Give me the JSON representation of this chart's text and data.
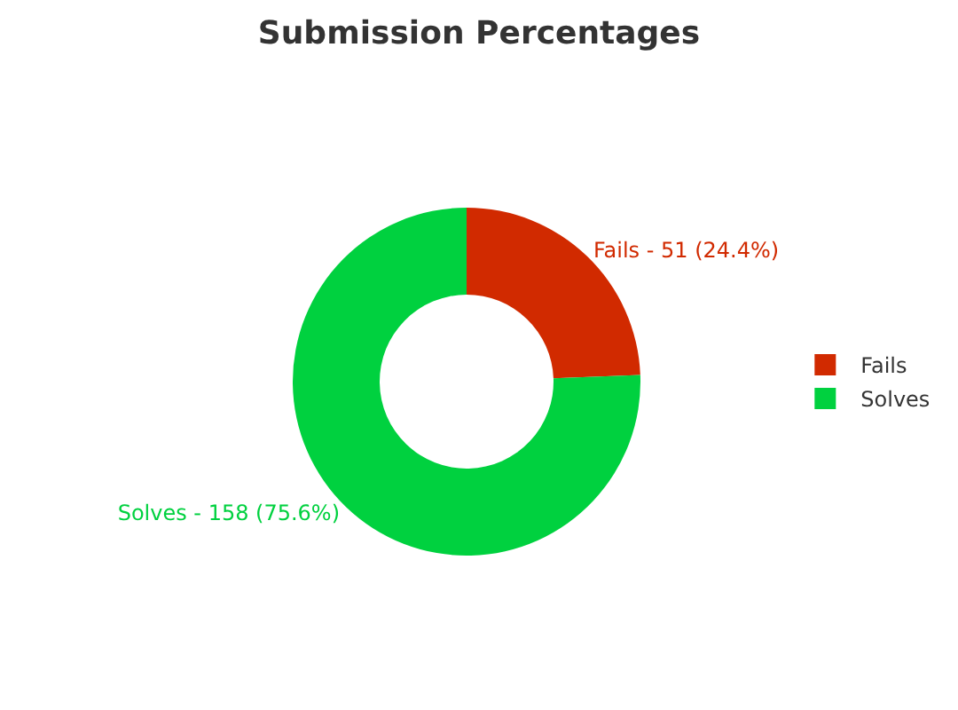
{
  "chart_data": {
    "type": "donut",
    "title": "Submission Percentages",
    "categories": [
      "Fails",
      "Solves"
    ],
    "values": [
      24.4,
      75.6
    ],
    "colors": [
      "#d12a00",
      "#00d13f"
    ],
    "value_labels": [
      "Fails - 51 (24.4%)",
      "Solves - 158 (75.6%)"
    ],
    "legend": "right"
  }
}
